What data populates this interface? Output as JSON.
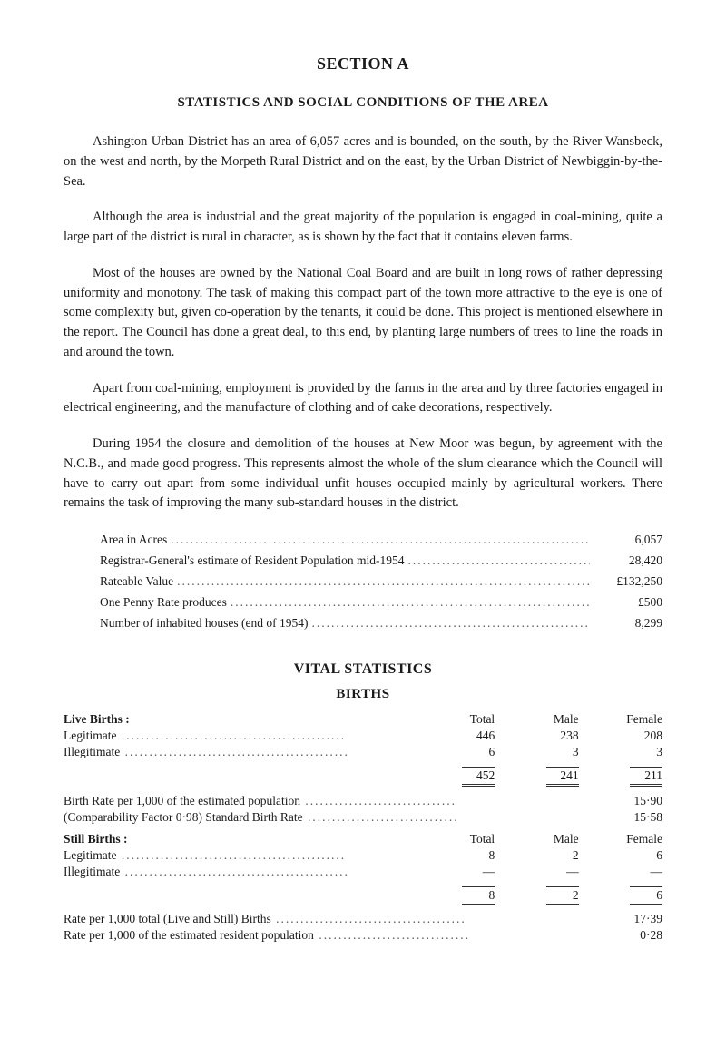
{
  "section_title": "SECTION A",
  "subsection_title": "STATISTICS AND SOCIAL CONDITIONS OF THE AREA",
  "paragraphs": [
    "Ashington Urban District has an area of 6,057 acres and is bounded, on the south, by the River Wansbeck, on the west and north, by the Morpeth Rural District and on the east, by the Urban District of Newbiggin-by-the-Sea.",
    "Although the area is industrial and the great majority of the population is engaged in coal-mining, quite a large part of the district is rural in character, as is shown by the fact that it contains eleven farms.",
    "Most of the houses are owned by the National Coal Board and are built in long rows of rather depressing uniformity and monotony. The task of making this compact part of the town more attractive to the eye is one of some complexity but, given co-operation by the tenants, it could be done. This project is mentioned elsewhere in the report. The Council has done a great deal, to this end, by planting large numbers of trees to line the roads in and around the town.",
    "Apart from coal-mining, employment is provided by the farms in the area and by three factories engaged in electrical engineering, and the manufacture of clothing and of cake decorations, respectively.",
    "During 1954 the closure and demolition of the houses at New Moor was begun, by agreement with the N.C.B., and made good progress. This represents almost the whole of the slum clearance which the Council will have to carry out apart from some individual unfit houses occupied mainly by agricultural workers. There remains the task of improving the many sub-standard houses in the district."
  ],
  "area_stats": [
    {
      "label": "Area in Acres",
      "value": "6,057"
    },
    {
      "label": "Registrar-General's estimate of Resident Population mid-1954",
      "value": "28,420"
    },
    {
      "label": "Rateable Value",
      "value": "£132,250"
    },
    {
      "label": "One Penny Rate produces",
      "value": "£500"
    },
    {
      "label": "Number of inhabited houses (end of 1954)",
      "value": "8,299"
    }
  ],
  "vital_title": "VITAL STATISTICS",
  "births_title": "BIRTHS",
  "live_births": {
    "title": "Live Births :",
    "headers": {
      "total": "Total",
      "male": "Male",
      "female": "Female"
    },
    "rows": [
      {
        "label": "Legitimate",
        "total": "446",
        "male": "238",
        "female": "208"
      },
      {
        "label": "Illegitimate",
        "total": "6",
        "male": "3",
        "female": "3"
      }
    ],
    "totals": {
      "total": "452",
      "male": "241",
      "female": "211"
    }
  },
  "birth_rates": [
    {
      "label": "Birth Rate per 1,000 of the estimated population",
      "value": "15·90"
    },
    {
      "label": "(Comparability Factor 0·98) Standard Birth Rate",
      "value": "15·58"
    }
  ],
  "still_births": {
    "title": "Still Births :",
    "headers": {
      "total": "Total",
      "male": "Male",
      "female": "Female"
    },
    "rows": [
      {
        "label": "Legitimate",
        "total": "8",
        "male": "2",
        "female": "6"
      },
      {
        "label": "Illegitimate",
        "total": "—",
        "male": "—",
        "female": "—"
      }
    ],
    "totals": {
      "total": "8",
      "male": "2",
      "female": "6"
    }
  },
  "final_rates": [
    {
      "label": "Rate per 1,000 total (Live and Still) Births",
      "value": "17·39"
    },
    {
      "label": "Rate per 1,000 of the estimated resident population",
      "value": "0·28"
    }
  ]
}
